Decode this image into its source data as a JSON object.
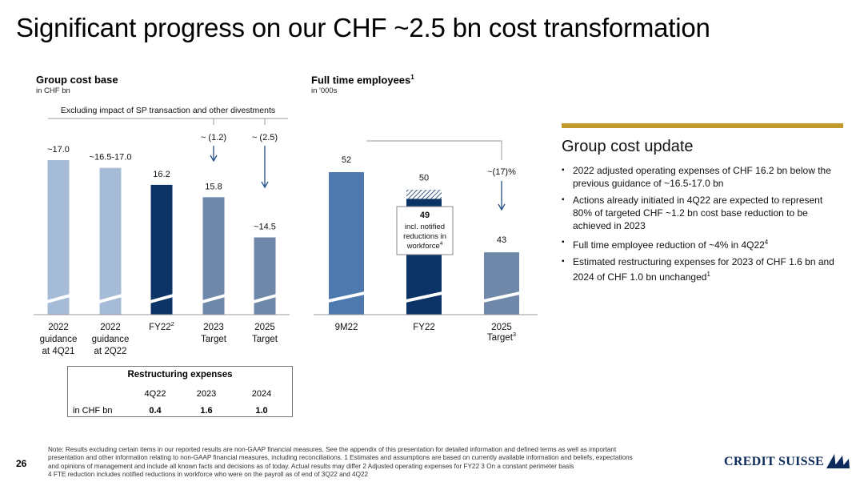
{
  "title": "Significant progress on our CHF ~2.5 bn cost transformation",
  "page_number": "26",
  "colors": {
    "light_blue": "#A6BCD6",
    "dark_navy": "#0C3366",
    "slate": "#6F87A8",
    "mid_blue": "#4D79AE",
    "gold": "#C39B2C"
  },
  "chart_data": [
    {
      "type": "bar",
      "title": "Group cost base",
      "subtitle": "in CHF bn",
      "bracket_label": "Excluding impact of SP transaction and other divestments",
      "categories": [
        "2022 guidance at 4Q21",
        "2022 guidance at 2Q22",
        "FY22",
        "2023 Target",
        "2025 Target"
      ],
      "category_lines": [
        [
          "2022",
          "guidance",
          "at 4Q21"
        ],
        [
          "2022",
          "guidance",
          "at 2Q22"
        ],
        [
          "FY22"
        ],
        [
          "2023",
          "Target"
        ],
        [
          "2025",
          "Target"
        ]
      ],
      "category_superscripts": [
        "",
        "",
        "2",
        "",
        ""
      ],
      "values": [
        17.0,
        16.75,
        16.2,
        15.8,
        14.5
      ],
      "value_labels": [
        "~17.0",
        "~16.5-17.0",
        "16.2",
        "15.8",
        "~14.5"
      ],
      "bar_colors": [
        "#A6BCD6",
        "#A6BCD6",
        "#0C3366",
        "#6F87A8",
        "#6F87A8"
      ],
      "reduction_labels": [
        "~ (1.2)",
        "~ (2.5)"
      ],
      "axis_break": true,
      "ylim": [
        12.0,
        17.0
      ]
    },
    {
      "type": "bar",
      "title": "Full time employees",
      "title_superscript": "1",
      "subtitle": "in '000s",
      "categories": [
        "9M22",
        "FY22",
        "2025 Target"
      ],
      "category_lines": [
        [
          "9M22"
        ],
        [
          "FY22"
        ],
        [
          "2025",
          "Target"
        ]
      ],
      "category_superscripts": [
        "",
        "",
        "3"
      ],
      "values": [
        52,
        50,
        43
      ],
      "value_labels": [
        "52",
        "50",
        "43"
      ],
      "bar_colors": [
        "#4D79AE",
        "#0C3366",
        "#6F87A8"
      ],
      "fy22_notified_value": 49,
      "callout_value": "49",
      "callout_lines": [
        "incl. notified",
        "reductions in",
        "workforce"
      ],
      "callout_superscript": "4",
      "reduction_label": "~(17)%",
      "axis_break": true,
      "ylim": [
        36,
        52
      ]
    }
  ],
  "update": {
    "heading": "Group cost update",
    "bullets": [
      {
        "text": "2022 adjusted operating expenses of CHF 16.2 bn below the previous guidance of ~16.5-17.0 bn",
        "sup": ""
      },
      {
        "text": "Actions already initiated in 4Q22 are expected to represent 80% of targeted CHF ~1.2 bn cost base reduction to be achieved in 2023",
        "sup": ""
      },
      {
        "text": "Full time employee reduction of ~4% in 4Q22",
        "sup": "4"
      },
      {
        "text": "Estimated restructuring expenses for 2023 of CHF 1.6 bn and 2024 of CHF 1.0 bn unchanged",
        "sup": "1"
      }
    ]
  },
  "restructuring": {
    "title": "Restructuring expenses",
    "columns": [
      "4Q22",
      "2023",
      "2024"
    ],
    "row_label": "in CHF bn",
    "values": [
      "0.4",
      "1.6",
      "1.0"
    ]
  },
  "footnote_lines": [
    "Note: Results excluding certain items in our reported results are non-GAAP financial measures. See the appendix of this presentation for detailed information and defined terms as well as important",
    "presentation and other information relating to non-GAAP financial measures, including reconciliations.     1 Estimates and assumptions are based on currently available information and beliefs, expectations",
    "and opinions of management and include all known facts and decisions as of today. Actual results may differ     2 Adjusted operating expenses for FY22     3 On a constant perimeter basis",
    "4 FTE reduction includes notified reductions in workforce who were on the payroll as of end of 3Q22 and 4Q22"
  ],
  "logo_text": "CREDIT SUISSE"
}
